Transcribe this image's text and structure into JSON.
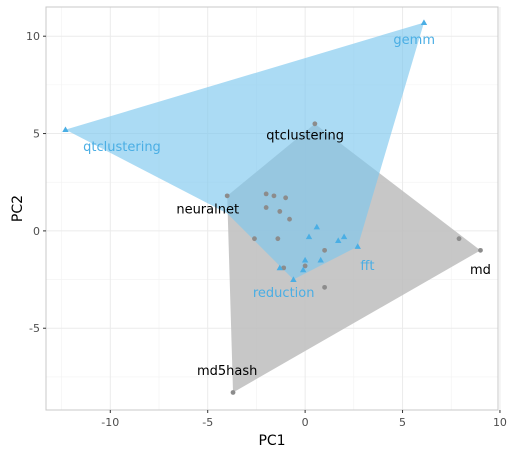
{
  "chart_data": {
    "type": "scatter",
    "xlabel": "PC1",
    "ylabel": "PC2",
    "xlim": [
      -13.3,
      9.9
    ],
    "ylim": [
      -9.2,
      11.5
    ],
    "x_ticks": [
      -10,
      -5,
      0,
      5,
      10
    ],
    "y_ticks": [
      -5,
      0,
      5,
      10
    ],
    "x_tick_labels": [
      "-10",
      "-5",
      "0",
      "5",
      "10"
    ],
    "y_tick_labels": [
      "-5",
      "0",
      "5",
      "10"
    ],
    "grid": true,
    "legend": "none",
    "series": [
      {
        "marker": "circle",
        "color": "#8c8c8c",
        "hull_color": "#bdbdbd",
        "hull": [
          [
            -3.7,
            -8.3
          ],
          [
            9.0,
            -1.0
          ],
          [
            0.5,
            5.5
          ],
          [
            -4.0,
            1.8
          ]
        ],
        "points": [
          [
            -3.7,
            -8.3
          ],
          [
            -4.0,
            1.8
          ],
          [
            0.5,
            5.5
          ],
          [
            9.0,
            -1.0
          ],
          [
            7.9,
            -0.4
          ],
          [
            -1.6,
            1.8
          ],
          [
            -1.0,
            1.7
          ],
          [
            -2.0,
            1.9
          ],
          [
            -2.0,
            1.2
          ],
          [
            -1.3,
            1.0
          ],
          [
            -0.8,
            0.6
          ],
          [
            -2.6,
            -0.4
          ],
          [
            -1.4,
            -0.4
          ],
          [
            1.0,
            -2.9
          ],
          [
            1.0,
            -1.0
          ],
          [
            -1.1,
            -1.9
          ],
          [
            0.0,
            -1.8
          ]
        ],
        "labels": [
          {
            "text": "md5hash",
            "x": -4.0,
            "y": -7.2
          },
          {
            "text": "neuralnet",
            "x": -5.0,
            "y": 1.1
          },
          {
            "text": "qtclustering",
            "x": 0.0,
            "y": 4.9
          },
          {
            "text": "md",
            "x": 9.0,
            "y": -2.0
          }
        ]
      },
      {
        "marker": "triangle",
        "color": "#4aaee4",
        "hull_color": "#7ec8ee",
        "hull": [
          [
            6.1,
            10.7
          ],
          [
            -12.3,
            5.2
          ],
          [
            -4.0,
            0.9
          ],
          [
            -0.6,
            -2.5
          ],
          [
            2.7,
            -0.8
          ]
        ],
        "points": [
          [
            6.1,
            10.7
          ],
          [
            -12.3,
            5.2
          ],
          [
            -0.6,
            -2.5
          ],
          [
            2.7,
            -0.8
          ],
          [
            0.6,
            0.2
          ],
          [
            2.0,
            -0.3
          ],
          [
            1.7,
            -0.5
          ],
          [
            0.2,
            -0.3
          ],
          [
            -1.3,
            -1.9
          ],
          [
            0.0,
            -1.5
          ],
          [
            0.8,
            -1.5
          ],
          [
            -0.1,
            -2.0
          ]
        ],
        "labels": [
          {
            "text": "gemm",
            "x": 5.6,
            "y": 9.8
          },
          {
            "text": "qtclustering",
            "x": -9.4,
            "y": 4.3
          },
          {
            "text": "fft",
            "x": 3.2,
            "y": -1.8
          },
          {
            "text": "reduction",
            "x": -1.1,
            "y": -3.2
          }
        ]
      }
    ]
  }
}
